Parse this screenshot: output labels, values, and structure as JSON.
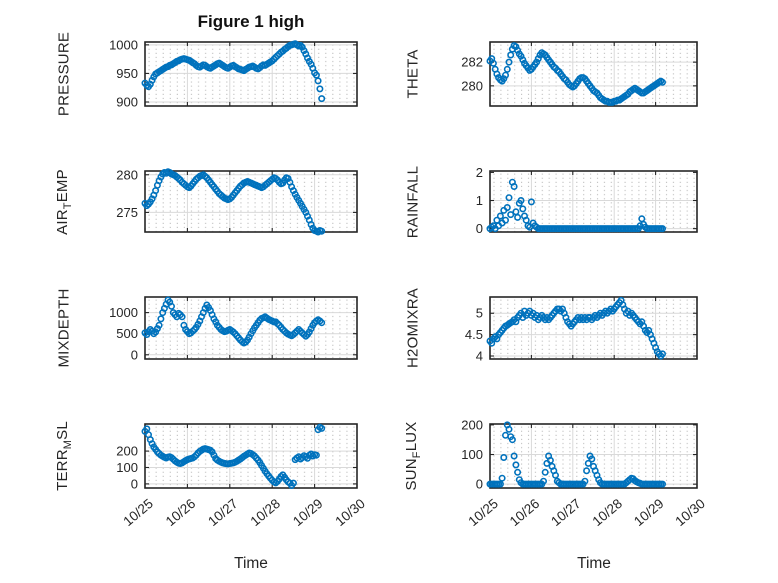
{
  "title": "Figure 1 high",
  "xlabel": "Time",
  "x_tick_labels": [
    "10/25",
    "10/26",
    "10/27",
    "10/28",
    "10/29",
    "10/30"
  ],
  "colors": {
    "marker": "#0072BD",
    "axis": "#262626",
    "grid_major": "#d9d9d9",
    "grid_minor": "#bdbdbd",
    "text": "#262626",
    "background": "#ffffff"
  },
  "chart_data": [
    {
      "type": "scatter",
      "name": "pressure",
      "row": 0,
      "col": 0,
      "ylabel": "PRESSURE",
      "ylabel_segments": [
        {
          "t": "PRESSURE",
          "sub": false
        }
      ],
      "ylim": [
        893,
        1005
      ],
      "yticks": [
        {
          "v": 900,
          "label": "900"
        },
        {
          "v": 950,
          "label": "950"
        },
        {
          "v": 1000,
          "label": "1000"
        }
      ],
      "x_unit": "hours from 10/25 00:00",
      "x_step_hours": 1,
      "xlim_days": [
        0,
        5
      ],
      "values": [
        933,
        929,
        927,
        931,
        938,
        944,
        949,
        951,
        953,
        955,
        957,
        959,
        961,
        962,
        964,
        965,
        967,
        969,
        971,
        972,
        974,
        975,
        976,
        975,
        974,
        973,
        971,
        969,
        967,
        964,
        962,
        961,
        963,
        965,
        964,
        962,
        960,
        959,
        961,
        963,
        965,
        967,
        968,
        966,
        964,
        962,
        960,
        959,
        961,
        963,
        964,
        962,
        960,
        958,
        957,
        956,
        955,
        957,
        959,
        961,
        962,
        963,
        961,
        959,
        958,
        960,
        963,
        965,
        964,
        966,
        968,
        970,
        972,
        975,
        978,
        981,
        984,
        987,
        989,
        992,
        994,
        997,
        999,
        1000,
        1001,
        1002,
        1000,
        998,
        999,
        996,
        990,
        984,
        977,
        971,
        966,
        959,
        951,
        947,
        937,
        923,
        906
      ]
    },
    {
      "type": "scatter",
      "name": "theta",
      "row": 0,
      "col": 1,
      "ylabel": "THETA",
      "ylabel_segments": [
        {
          "t": "THETA",
          "sub": false
        }
      ],
      "ylim": [
        278.3,
        283.7
      ],
      "yticks": [
        {
          "v": 280,
          "label": "280"
        },
        {
          "v": 282,
          "label": "282"
        }
      ],
      "x_unit": "hours from 10/25 00:00",
      "x_step_hours": 1,
      "xlim_days": [
        0,
        5
      ],
      "values": [
        282.1,
        282.3,
        281.9,
        281.4,
        281.0,
        280.7,
        280.5,
        280.4,
        280.6,
        280.9,
        281.4,
        282.0,
        282.6,
        283.1,
        283.4,
        283.3,
        283.0,
        282.7,
        282.5,
        282.2,
        281.9,
        281.7,
        281.5,
        281.3,
        281.4,
        281.6,
        281.8,
        282.0,
        282.3,
        282.6,
        282.8,
        282.7,
        282.6,
        282.4,
        282.2,
        282.0,
        281.8,
        281.6,
        281.5,
        281.3,
        281.2,
        281.0,
        280.8,
        280.6,
        280.5,
        280.3,
        280.1,
        280.0,
        279.9,
        280.0,
        280.2,
        280.4,
        280.6,
        280.7,
        280.7,
        280.6,
        280.4,
        280.2,
        280.0,
        279.8,
        279.6,
        279.5,
        279.4,
        279.2,
        279.0,
        278.9,
        278.8,
        278.7,
        278.7,
        278.6,
        278.6,
        278.6,
        278.7,
        278.7,
        278.8,
        278.8,
        278.9,
        279.0,
        279.1,
        279.2,
        279.3,
        279.5,
        279.6,
        279.7,
        279.8,
        279.7,
        279.6,
        279.5,
        279.4,
        279.4,
        279.5,
        279.6,
        279.7,
        279.8,
        279.9,
        280.0,
        280.1,
        280.2,
        280.3,
        280.4,
        280.3
      ]
    },
    {
      "type": "scatter",
      "name": "air-temp",
      "row": 1,
      "col": 0,
      "ylabel": "AIR_TEMP",
      "ylabel_segments": [
        {
          "t": "AIR",
          "sub": false
        },
        {
          "t": "T",
          "sub": true
        },
        {
          "t": "EMP",
          "sub": false
        }
      ],
      "ylim": [
        272.4,
        280.5
      ],
      "yticks": [
        {
          "v": 275,
          "label": "275"
        },
        {
          "v": 280,
          "label": "280"
        }
      ],
      "x_unit": "hours from 10/25 00:00",
      "x_step_hours": 1,
      "xlim_days": [
        0,
        5
      ],
      "values": [
        276.2,
        275.9,
        276.1,
        276.4,
        276.8,
        277.3,
        277.9,
        278.6,
        279.2,
        279.7,
        280.1,
        280.3,
        280.2,
        280.4,
        280.3,
        280.1,
        280.0,
        279.9,
        279.7,
        279.5,
        279.3,
        279.0,
        278.8,
        278.6,
        278.4,
        278.3,
        278.5,
        278.8,
        279.1,
        279.4,
        279.6,
        279.8,
        279.9,
        280.0,
        279.8,
        279.6,
        279.3,
        279.0,
        278.7,
        278.4,
        278.1,
        277.8,
        277.5,
        277.3,
        277.1,
        276.9,
        276.8,
        276.7,
        276.8,
        277.0,
        277.3,
        277.6,
        277.9,
        278.2,
        278.5,
        278.7,
        278.9,
        279.0,
        279.1,
        279.0,
        278.9,
        278.8,
        278.7,
        278.6,
        278.5,
        278.4,
        278.3,
        278.4,
        278.6,
        278.8,
        279.0,
        279.2,
        279.4,
        279.6,
        279.5,
        279.3,
        279.0,
        278.8,
        278.9,
        279.3,
        279.6,
        279.5,
        279.0,
        278.4,
        277.9,
        277.4,
        277.0,
        276.6,
        276.2,
        275.8,
        275.4,
        275.0,
        274.5,
        274.0,
        273.4,
        272.9,
        272.6,
        272.5,
        272.4,
        272.6,
        272.5
      ]
    },
    {
      "type": "scatter",
      "name": "rainfall",
      "row": 1,
      "col": 1,
      "ylabel": "RAINFALL",
      "ylabel_segments": [
        {
          "t": "RAINFALL",
          "sub": false
        }
      ],
      "ylim": [
        -0.12,
        2.05
      ],
      "yticks": [
        {
          "v": 0,
          "label": "0"
        },
        {
          "v": 1,
          "label": "1"
        },
        {
          "v": 2,
          "label": "2"
        }
      ],
      "x_unit": "hours from 10/25 00:00",
      "x_step_hours": 1,
      "xlim_days": [
        0,
        5
      ],
      "values": [
        0,
        0.05,
        0.1,
        0,
        0.3,
        0.1,
        0.45,
        0.2,
        0.65,
        0.3,
        0.75,
        1.1,
        0.5,
        1.65,
        1.5,
        0.6,
        0.4,
        0.9,
        1.0,
        0.7,
        0.45,
        0.3,
        0.1,
        0.05,
        0.95,
        0.2,
        0.1,
        0.05,
        0,
        0,
        0,
        0,
        0,
        0,
        0,
        0,
        0,
        0,
        0,
        0,
        0,
        0,
        0,
        0,
        0,
        0,
        0,
        0,
        0,
        0,
        0,
        0,
        0,
        0,
        0,
        0,
        0,
        0,
        0,
        0,
        0,
        0,
        0,
        0,
        0,
        0,
        0,
        0,
        0,
        0,
        0,
        0,
        0,
        0,
        0,
        0,
        0,
        0,
        0,
        0,
        0,
        0,
        0,
        0,
        0,
        0,
        0,
        0.1,
        0.35,
        0.15,
        0.05,
        0,
        0,
        0,
        0,
        0,
        0,
        0,
        0,
        0,
        0
      ]
    },
    {
      "type": "scatter",
      "name": "mixdepth",
      "row": 2,
      "col": 0,
      "ylabel": "MIXDEPTH",
      "ylabel_segments": [
        {
          "t": "MIXDEPTH",
          "sub": false
        }
      ],
      "ylim": [
        -100,
        1370
      ],
      "yticks": [
        {
          "v": 0,
          "label": "0"
        },
        {
          "v": 500,
          "label": "500"
        },
        {
          "v": 1000,
          "label": "1000"
        }
      ],
      "x_unit": "hours from 10/25 00:00",
      "x_step_hours": 1,
      "xlim_days": [
        0,
        5
      ],
      "values": [
        520,
        480,
        550,
        600,
        560,
        500,
        540,
        620,
        700,
        850,
        1000,
        1100,
        1200,
        1300,
        1250,
        1150,
        1000,
        950,
        900,
        980,
        950,
        900,
        700,
        600,
        550,
        500,
        520,
        560,
        600,
        650,
        720,
        800,
        900,
        1000,
        1100,
        1180,
        1120,
        1050,
        950,
        850,
        780,
        700,
        650,
        600,
        570,
        550,
        560,
        580,
        600,
        570,
        540,
        500,
        450,
        400,
        350,
        310,
        280,
        300,
        350,
        420,
        500,
        570,
        640,
        700,
        760,
        820,
        860,
        880,
        900,
        870,
        840,
        820,
        800,
        780,
        780,
        740,
        700,
        650,
        600,
        560,
        520,
        490,
        470,
        450,
        480,
        520,
        560,
        600,
        560,
        520,
        480,
        440,
        480,
        540,
        620,
        700,
        760,
        800,
        830,
        800,
        760
      ]
    },
    {
      "type": "scatter",
      "name": "h2omixra",
      "row": 2,
      "col": 1,
      "ylabel": "H2OMIXRA",
      "ylabel_segments": [
        {
          "t": "H2OMIXRA",
          "sub": false
        }
      ],
      "ylim": [
        3.93,
        5.38
      ],
      "yticks": [
        {
          "v": 4,
          "label": "4"
        },
        {
          "v": 4.5,
          "label": "4.5"
        },
        {
          "v": 5,
          "label": "5"
        }
      ],
      "x_unit": "hours from 10/25 00:00",
      "x_step_hours": 1,
      "xlim_days": [
        0,
        5
      ],
      "values": [
        4.35,
        4.3,
        4.4,
        4.45,
        4.4,
        4.5,
        4.55,
        4.6,
        4.65,
        4.7,
        4.72,
        4.75,
        4.78,
        4.8,
        4.85,
        4.8,
        4.9,
        4.95,
        5.0,
        4.9,
        5.05,
        4.95,
        5.0,
        5.05,
        4.95,
        5.0,
        4.9,
        4.95,
        4.85,
        4.9,
        4.95,
        4.9,
        4.85,
        4.9,
        4.85,
        4.9,
        4.95,
        5.0,
        5.05,
        5.1,
        5.1,
        5.05,
        5.1,
        5.0,
        4.9,
        4.8,
        4.75,
        4.7,
        4.75,
        4.8,
        4.85,
        4.9,
        4.85,
        4.9,
        4.85,
        4.9,
        4.85,
        4.9,
        4.9,
        4.85,
        4.9,
        4.95,
        4.9,
        4.95,
        5.0,
        4.95,
        5.0,
        5.05,
        5.0,
        5.05,
        5.1,
        5.05,
        5.1,
        5.15,
        5.2,
        5.25,
        5.3,
        5.2,
        5.1,
        5.0,
        5.05,
        4.95,
        5.0,
        4.95,
        4.9,
        4.85,
        4.8,
        4.75,
        4.8,
        4.7,
        4.6,
        4.55,
        4.6,
        4.5,
        4.4,
        4.3,
        4.2,
        4.1,
        4.05,
        4.0,
        4.05
      ]
    },
    {
      "type": "scatter",
      "name": "terr-msl",
      "row": 3,
      "col": 0,
      "ylabel": "TERR_MSL",
      "ylabel_segments": [
        {
          "t": "TERR",
          "sub": false
        },
        {
          "t": "M",
          "sub": true
        },
        {
          "t": "SL",
          "sub": false
        }
      ],
      "ylim": [
        -25,
        365
      ],
      "yticks": [
        {
          "v": 0,
          "label": "0"
        },
        {
          "v": 100,
          "label": "100"
        },
        {
          "v": 200,
          "label": "200"
        }
      ],
      "x_unit": "hours from 10/25 00:00",
      "x_step_hours": 1,
      "xlim_days": [
        0,
        5
      ],
      "values": [
        320,
        335,
        300,
        270,
        245,
        225,
        210,
        195,
        185,
        175,
        168,
        162,
        158,
        163,
        166,
        160,
        150,
        140,
        132,
        126,
        124,
        128,
        135,
        142,
        148,
        152,
        155,
        158,
        165,
        175,
        188,
        198,
        205,
        212,
        215,
        212,
        209,
        205,
        195,
        175,
        155,
        145,
        138,
        132,
        128,
        125,
        123,
        122,
        124,
        126,
        128,
        132,
        138,
        145,
        152,
        160,
        168,
        175,
        182,
        188,
        185,
        178,
        170,
        158,
        145,
        130,
        112,
        95,
        78,
        62,
        48,
        35,
        22,
        12,
        6,
        15,
        30,
        45,
        55,
        40,
        25,
        12,
        4,
        -10,
        5,
        148,
        158,
        165,
        152,
        160,
        172,
        166,
        156,
        174,
        182,
        170,
        178,
        175,
        330,
        345,
        338
      ]
    },
    {
      "type": "scatter",
      "name": "sun-flux",
      "row": 3,
      "col": 1,
      "ylabel": "SUN_FLUX",
      "ylabel_segments": [
        {
          "t": "SUN",
          "sub": false
        },
        {
          "t": "F",
          "sub": true
        },
        {
          "t": "LUX",
          "sub": false
        }
      ],
      "ylim": [
        -13,
        203
      ],
      "yticks": [
        {
          "v": 0,
          "label": "0"
        },
        {
          "v": 100,
          "label": "100"
        },
        {
          "v": 200,
          "label": "200"
        }
      ],
      "x_unit": "hours from 10/25 00:00",
      "x_step_hours": 1,
      "xlim_days": [
        0,
        5
      ],
      "values": [
        0,
        0,
        0,
        0,
        0,
        0,
        0,
        20,
        90,
        165,
        200,
        185,
        160,
        150,
        95,
        65,
        40,
        15,
        5,
        0,
        0,
        0,
        0,
        0,
        0,
        0,
        0,
        0,
        0,
        0,
        0,
        10,
        40,
        70,
        95,
        80,
        60,
        45,
        30,
        10,
        5,
        0,
        0,
        0,
        0,
        0,
        0,
        0,
        0,
        0,
        0,
        0,
        0,
        0,
        0,
        10,
        45,
        70,
        95,
        85,
        60,
        45,
        30,
        15,
        5,
        0,
        0,
        0,
        0,
        0,
        0,
        0,
        0,
        0,
        0,
        0,
        0,
        0,
        0,
        5,
        10,
        15,
        20,
        18,
        12,
        8,
        5,
        3,
        0,
        0,
        0,
        0,
        0,
        0,
        0,
        0,
        0,
        0,
        0,
        0,
        0
      ]
    }
  ]
}
